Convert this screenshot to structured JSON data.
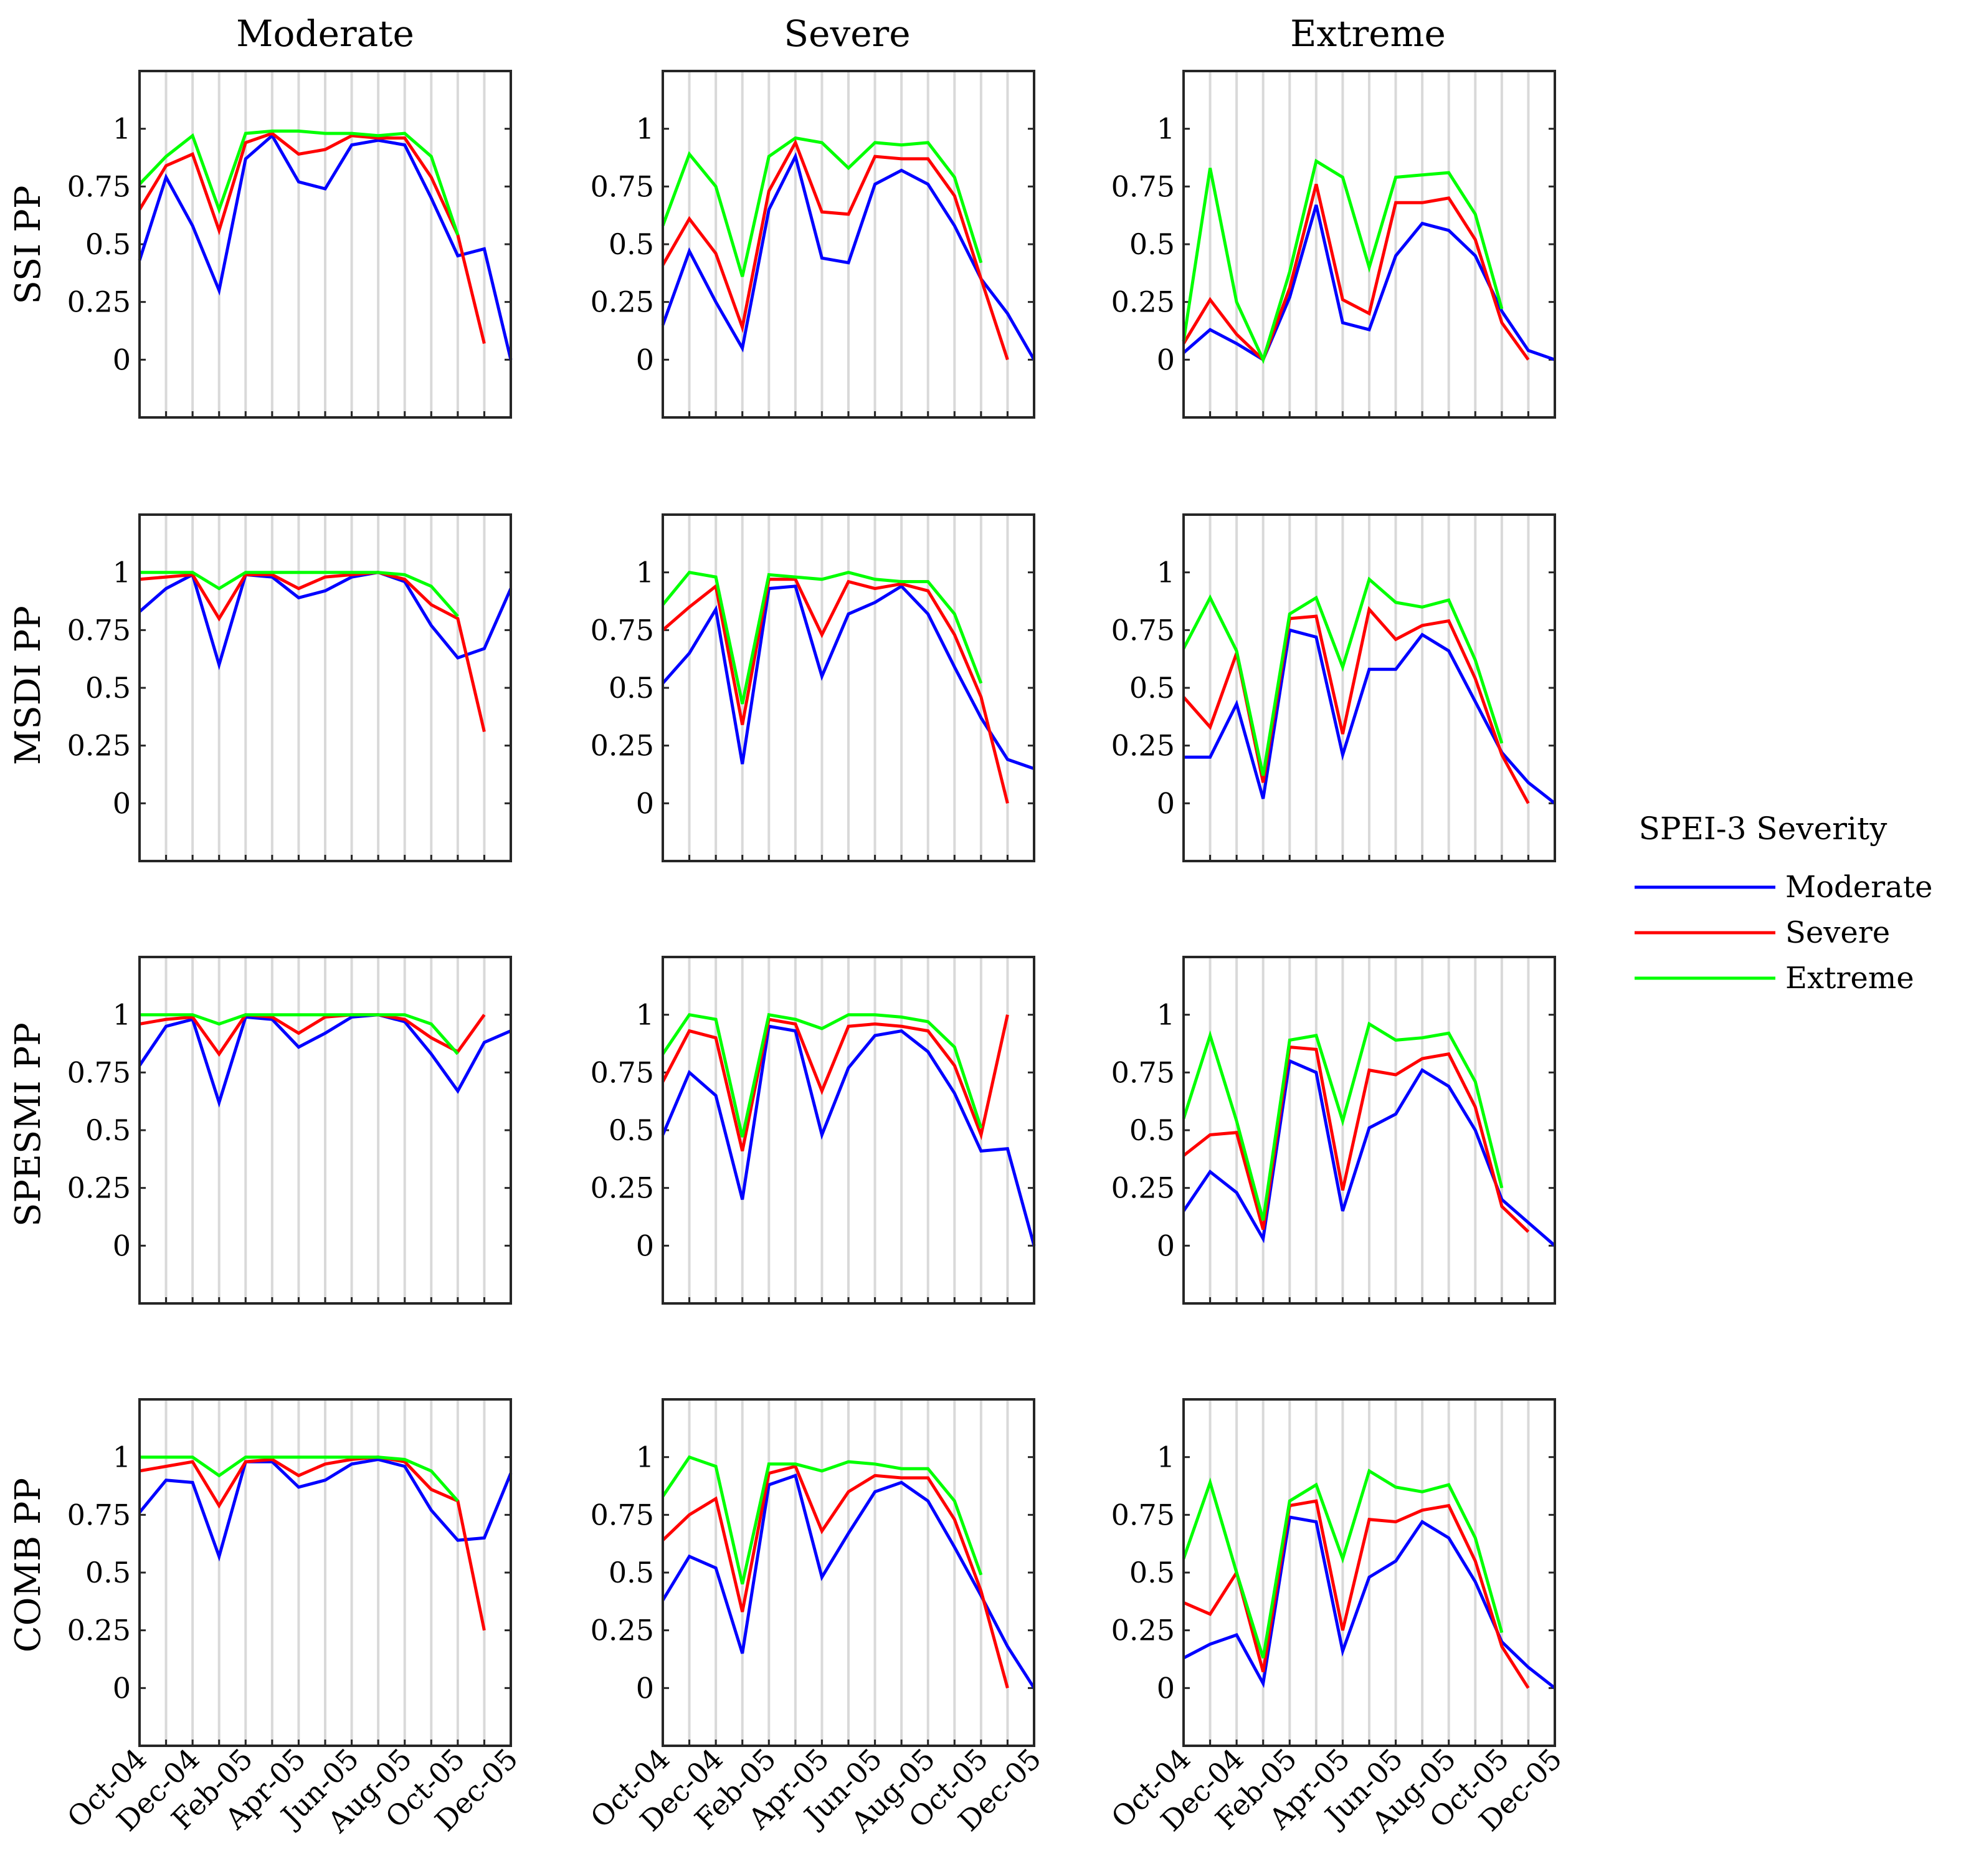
{
  "chart_data": {
    "type": "line",
    "figure": "Propagation probability (PP) by SPEI-3 drought severity",
    "x": [
      "Oct-04",
      "Nov-04",
      "Dec-04",
      "Jan-05",
      "Feb-05",
      "Mar-05",
      "Apr-05",
      "May-05",
      "Jun-05",
      "Jul-05",
      "Aug-05",
      "Sep-05",
      "Oct-05",
      "Nov-05",
      "Dec-05"
    ],
    "x_tick_labels": [
      "Oct-04",
      "Dec-04",
      "Feb-05",
      "Apr-05",
      "Jun-05",
      "Aug-05",
      "Oct-05",
      "Dec-05"
    ],
    "y_ticks": [
      "0",
      "0.25",
      "0.5",
      "0.75",
      "1"
    ],
    "ylim": [
      -0.25,
      1.25
    ],
    "grid": "vertical",
    "columns": [
      "Moderate",
      "Severe",
      "Extreme"
    ],
    "rows": [
      "SSI PP",
      "MSDI PP",
      "SPESMI PP",
      "COMB PP"
    ],
    "legend": {
      "title": "SPEI-3 Severity",
      "placement": "right",
      "entries": [
        {
          "name": "Moderate",
          "color": "#0000ff"
        },
        {
          "name": "Severe",
          "color": "#ff0000"
        },
        {
          "name": "Extreme",
          "color": "#00ff00"
        }
      ]
    },
    "panels": [
      [
        {
          "row": "SSI PP",
          "column": "Moderate",
          "series": [
            {
              "name": "Moderate",
              "values": [
                0.43,
                0.79,
                0.58,
                0.3,
                0.87,
                0.97,
                0.77,
                0.74,
                0.93,
                0.95,
                0.93,
                0.7,
                0.45,
                0.48,
                0.0
              ]
            },
            {
              "name": "Severe",
              "values": [
                0.65,
                0.84,
                0.89,
                0.56,
                0.94,
                0.98,
                0.89,
                0.91,
                0.97,
                0.96,
                0.96,
                0.79,
                0.54,
                0.07,
                null
              ]
            },
            {
              "name": "Extreme",
              "values": [
                0.76,
                0.88,
                0.97,
                0.65,
                0.98,
                0.99,
                0.99,
                0.98,
                0.98,
                0.97,
                0.98,
                0.88,
                0.54,
                null,
                null
              ]
            }
          ]
        },
        {
          "row": "SSI PP",
          "column": "Severe",
          "series": [
            {
              "name": "Moderate",
              "values": [
                0.15,
                0.47,
                0.25,
                0.05,
                0.65,
                0.88,
                0.44,
                0.42,
                0.76,
                0.82,
                0.76,
                0.58,
                0.35,
                0.2,
                0.0
              ]
            },
            {
              "name": "Severe",
              "values": [
                0.41,
                0.61,
                0.46,
                0.14,
                0.73,
                0.94,
                0.64,
                0.63,
                0.88,
                0.87,
                0.87,
                0.71,
                0.35,
                0.0,
                null
              ]
            },
            {
              "name": "Extreme",
              "values": [
                0.58,
                0.89,
                0.75,
                0.36,
                0.88,
                0.96,
                0.94,
                0.83,
                0.94,
                0.93,
                0.94,
                0.79,
                0.42,
                null,
                null
              ]
            }
          ]
        },
        {
          "row": "SSI PP",
          "column": "Extreme",
          "series": [
            {
              "name": "Moderate",
              "values": [
                0.03,
                0.13,
                0.07,
                0.0,
                0.27,
                0.67,
                0.16,
                0.13,
                0.45,
                0.59,
                0.56,
                0.45,
                0.21,
                0.04,
                0.0
              ]
            },
            {
              "name": "Severe",
              "values": [
                0.07,
                0.26,
                0.11,
                0.0,
                0.31,
                0.76,
                0.26,
                0.2,
                0.68,
                0.68,
                0.7,
                0.52,
                0.16,
                0.0,
                null
              ]
            },
            {
              "name": "Extreme",
              "values": [
                0.08,
                0.83,
                0.25,
                0.0,
                0.38,
                0.86,
                0.79,
                0.4,
                0.79,
                0.8,
                0.81,
                0.63,
                0.22,
                null,
                null
              ]
            }
          ]
        }
      ],
      [
        {
          "row": "MSDI PP",
          "column": "Moderate",
          "series": [
            {
              "name": "Moderate",
              "values": [
                0.83,
                0.93,
                0.99,
                0.6,
                0.99,
                0.98,
                0.89,
                0.92,
                0.98,
                1.0,
                0.96,
                0.77,
                0.63,
                0.67,
                0.93
              ]
            },
            {
              "name": "Severe",
              "values": [
                0.97,
                0.98,
                0.99,
                0.8,
                0.99,
                0.99,
                0.93,
                0.98,
                0.99,
                1.0,
                0.97,
                0.86,
                0.8,
                0.31,
                null
              ]
            },
            {
              "name": "Extreme",
              "values": [
                1.0,
                1.0,
                1.0,
                0.93,
                1.0,
                1.0,
                1.0,
                1.0,
                1.0,
                1.0,
                0.99,
                0.94,
                0.81,
                null,
                null
              ]
            }
          ]
        },
        {
          "row": "MSDI PP",
          "column": "Severe",
          "series": [
            {
              "name": "Moderate",
              "values": [
                0.52,
                0.65,
                0.84,
                0.17,
                0.93,
                0.94,
                0.55,
                0.82,
                0.87,
                0.94,
                0.82,
                0.59,
                0.37,
                0.19,
                0.15
              ]
            },
            {
              "name": "Severe",
              "values": [
                0.75,
                0.85,
                0.94,
                0.34,
                0.97,
                0.97,
                0.73,
                0.96,
                0.93,
                0.95,
                0.92,
                0.73,
                0.46,
                0.0,
                null
              ]
            },
            {
              "name": "Extreme",
              "values": [
                0.86,
                1.0,
                0.98,
                0.43,
                0.99,
                0.98,
                0.97,
                1.0,
                0.97,
                0.96,
                0.96,
                0.82,
                0.52,
                null,
                null
              ]
            }
          ]
        },
        {
          "row": "MSDI PP",
          "column": "Extreme",
          "series": [
            {
              "name": "Moderate",
              "values": [
                0.2,
                0.2,
                0.43,
                0.02,
                0.75,
                0.72,
                0.21,
                0.58,
                0.58,
                0.73,
                0.66,
                0.44,
                0.22,
                0.09,
                0.0
              ]
            },
            {
              "name": "Severe",
              "values": [
                0.46,
                0.33,
                0.65,
                0.09,
                0.8,
                0.81,
                0.3,
                0.84,
                0.71,
                0.77,
                0.79,
                0.54,
                0.21,
                0.0,
                null
              ]
            },
            {
              "name": "Extreme",
              "values": [
                0.67,
                0.89,
                0.66,
                0.12,
                0.82,
                0.89,
                0.59,
                0.97,
                0.87,
                0.85,
                0.88,
                0.62,
                0.26,
                null,
                null
              ]
            }
          ]
        }
      ],
      [
        {
          "row": "SPESMI PP",
          "column": "Moderate",
          "series": [
            {
              "name": "Moderate",
              "values": [
                0.78,
                0.95,
                0.98,
                0.62,
                0.99,
                0.98,
                0.86,
                0.92,
                0.99,
                1.0,
                0.97,
                0.83,
                0.67,
                0.88,
                0.93
              ]
            },
            {
              "name": "Severe",
              "values": [
                0.96,
                0.98,
                0.99,
                0.83,
                1.0,
                0.99,
                0.92,
                0.99,
                1.0,
                1.0,
                0.98,
                0.9,
                0.84,
                1.0,
                null
              ]
            },
            {
              "name": "Extreme",
              "values": [
                1.0,
                1.0,
                1.0,
                0.96,
                1.0,
                1.0,
                1.0,
                1.0,
                1.0,
                1.0,
                1.0,
                0.96,
                0.83,
                null,
                null
              ]
            }
          ]
        },
        {
          "row": "SPESMI PP",
          "column": "Severe",
          "series": [
            {
              "name": "Moderate",
              "values": [
                0.48,
                0.75,
                0.65,
                0.2,
                0.95,
                0.93,
                0.48,
                0.77,
                0.91,
                0.93,
                0.84,
                0.66,
                0.41,
                0.42,
                0.0
              ]
            },
            {
              "name": "Severe",
              "values": [
                0.71,
                0.93,
                0.9,
                0.41,
                0.98,
                0.96,
                0.67,
                0.95,
                0.96,
                0.95,
                0.93,
                0.78,
                0.48,
                1.0,
                null
              ]
            },
            {
              "name": "Extreme",
              "values": [
                0.83,
                1.0,
                0.98,
                0.47,
                1.0,
                0.98,
                0.94,
                1.0,
                1.0,
                0.99,
                0.97,
                0.86,
                0.51,
                null,
                null
              ]
            }
          ]
        },
        {
          "row": "SPESMI PP",
          "column": "Extreme",
          "series": [
            {
              "name": "Moderate",
              "values": [
                0.15,
                0.32,
                0.23,
                0.03,
                0.8,
                0.75,
                0.15,
                0.51,
                0.57,
                0.76,
                0.69,
                0.5,
                0.2,
                0.1,
                0.0
              ]
            },
            {
              "name": "Severe",
              "values": [
                0.39,
                0.48,
                0.49,
                0.07,
                0.86,
                0.85,
                0.24,
                0.76,
                0.74,
                0.81,
                0.83,
                0.6,
                0.17,
                0.06,
                null
              ]
            },
            {
              "name": "Extreme",
              "values": [
                0.55,
                0.91,
                0.54,
                0.11,
                0.89,
                0.91,
                0.54,
                0.96,
                0.89,
                0.9,
                0.92,
                0.71,
                0.25,
                null,
                null
              ]
            }
          ]
        }
      ],
      [
        {
          "row": "COMB PP",
          "column": "Moderate",
          "series": [
            {
              "name": "Moderate",
              "values": [
                0.76,
                0.9,
                0.89,
                0.57,
                0.98,
                0.98,
                0.87,
                0.9,
                0.97,
                0.99,
                0.96,
                0.77,
                0.64,
                0.65,
                0.93
              ]
            },
            {
              "name": "Severe",
              "values": [
                0.94,
                0.96,
                0.98,
                0.79,
                0.98,
                0.99,
                0.92,
                0.97,
                0.99,
                1.0,
                0.98,
                0.86,
                0.81,
                0.25,
                null
              ]
            },
            {
              "name": "Extreme",
              "values": [
                1.0,
                1.0,
                1.0,
                0.92,
                1.0,
                1.0,
                1.0,
                1.0,
                1.0,
                1.0,
                0.99,
                0.94,
                0.81,
                null,
                null
              ]
            }
          ]
        },
        {
          "row": "COMB PP",
          "column": "Severe",
          "series": [
            {
              "name": "Moderate",
              "values": [
                0.38,
                0.57,
                0.52,
                0.15,
                0.88,
                0.92,
                0.48,
                0.67,
                0.85,
                0.89,
                0.81,
                0.61,
                0.4,
                0.18,
                0.0
              ]
            },
            {
              "name": "Severe",
              "values": [
                0.64,
                0.75,
                0.82,
                0.33,
                0.93,
                0.96,
                0.68,
                0.85,
                0.92,
                0.91,
                0.91,
                0.73,
                0.42,
                0.0,
                null
              ]
            },
            {
              "name": "Extreme",
              "values": [
                0.83,
                1.0,
                0.96,
                0.45,
                0.97,
                0.97,
                0.94,
                0.98,
                0.97,
                0.95,
                0.95,
                0.81,
                0.49,
                null,
                null
              ]
            }
          ]
        },
        {
          "row": "COMB PP",
          "column": "Extreme",
          "series": [
            {
              "name": "Moderate",
              "values": [
                0.13,
                0.19,
                0.23,
                0.02,
                0.74,
                0.72,
                0.16,
                0.48,
                0.55,
                0.72,
                0.65,
                0.46,
                0.2,
                0.09,
                0.0
              ]
            },
            {
              "name": "Severe",
              "values": [
                0.37,
                0.32,
                0.5,
                0.07,
                0.79,
                0.81,
                0.25,
                0.73,
                0.72,
                0.77,
                0.79,
                0.55,
                0.18,
                0.0,
                null
              ]
            },
            {
              "name": "Extreme",
              "values": [
                0.56,
                0.89,
                0.5,
                0.13,
                0.81,
                0.88,
                0.56,
                0.94,
                0.87,
                0.85,
                0.88,
                0.65,
                0.24,
                null,
                null
              ]
            }
          ]
        }
      ]
    ]
  }
}
